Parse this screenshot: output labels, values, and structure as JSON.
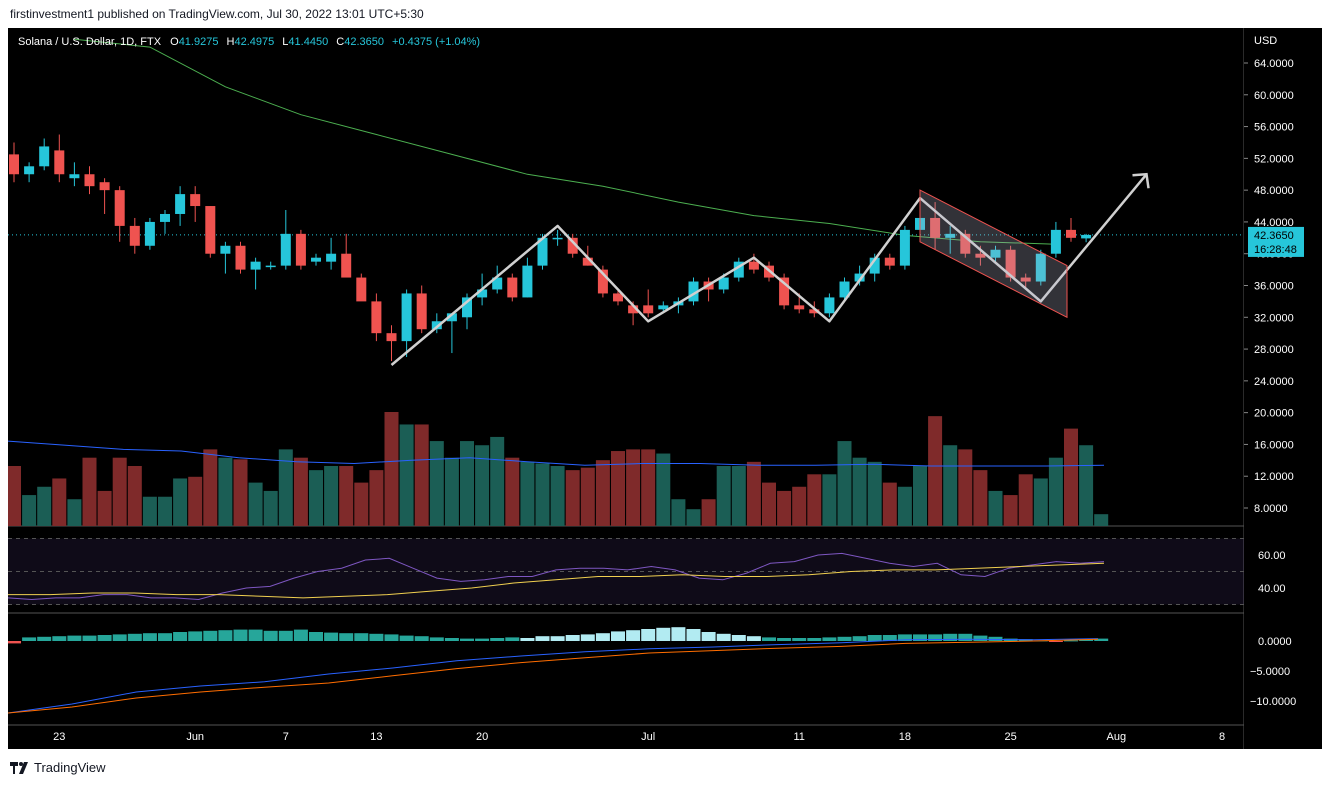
{
  "header": {
    "publish_line": "firstinvestment1 published on TradingView.com, Jul 30, 2022 13:01 UTC+5:30"
  },
  "legend": {
    "symbol": "Solana / U.S. Dollar, 1D, FTX",
    "o_label": "O",
    "o_value": "41.9275",
    "h_label": "H",
    "h_value": "42.4975",
    "l_label": "L",
    "l_value": "41.4450",
    "c_label": "C",
    "c_value": "42.3650",
    "change": "+0.4375 (+1.04%)"
  },
  "price_axis": {
    "currency": "USD",
    "ticks": [
      "64.0000",
      "60.0000",
      "56.0000",
      "52.0000",
      "48.0000",
      "44.0000",
      "40.0000",
      "36.0000",
      "32.0000",
      "28.0000",
      "24.0000",
      "20.0000",
      "16.0000",
      "12.0000",
      "8.0000"
    ],
    "last_price": "42.3650",
    "countdown": "16:28:48"
  },
  "rsi_axis": {
    "ticks": [
      "60.00",
      "40.00"
    ]
  },
  "macd_axis": {
    "ticks": [
      "0.0000",
      "−5.0000",
      "−10.0000"
    ]
  },
  "time_axis": {
    "labels": [
      "23",
      "Jun",
      "7",
      "13",
      "20",
      "Jul",
      "11",
      "18",
      "25",
      "Aug",
      "8"
    ]
  },
  "footer": {
    "brand": "TradingView"
  },
  "colors": {
    "up": "#26c6da",
    "down": "#ef5350",
    "vol_up": "#1b5e55",
    "vol_down": "#7f2a2a",
    "ma": "#4caf50",
    "vol_ma": "#2962ff",
    "rsi": "#7e57c2",
    "rsi_ma": "#f0d050",
    "macd": "#2962ff",
    "signal": "#ff6d00",
    "pattern": "#d0d0d0",
    "channel": "#ef5350"
  },
  "chart_data": {
    "type": "candlestick",
    "title": "Solana / U.S. Dollar, 1D, FTX",
    "x_range": [
      "2022-05-20",
      "2022-08-10"
    ],
    "ylim": [
      6.5,
      67
    ],
    "candles": [
      {
        "d": "2022-05-20",
        "o": 52.5,
        "h": 54.0,
        "l": 49.0,
        "c": 50.0
      },
      {
        "d": "2022-05-21",
        "o": 50.0,
        "h": 51.5,
        "l": 49.0,
        "c": 51.0
      },
      {
        "d": "2022-05-22",
        "o": 51.0,
        "h": 54.5,
        "l": 50.5,
        "c": 53.5
      },
      {
        "d": "2022-05-23",
        "o": 53.0,
        "h": 55.0,
        "l": 49.0,
        "c": 50.0
      },
      {
        "d": "2022-05-24",
        "o": 49.5,
        "h": 51.5,
        "l": 48.5,
        "c": 50.0
      },
      {
        "d": "2022-05-25",
        "o": 50.0,
        "h": 51.0,
        "l": 47.5,
        "c": 48.5
      },
      {
        "d": "2022-05-26",
        "o": 49.0,
        "h": 49.5,
        "l": 45.0,
        "c": 48.0
      },
      {
        "d": "2022-05-27",
        "o": 48.0,
        "h": 48.5,
        "l": 41.5,
        "c": 43.5
      },
      {
        "d": "2022-05-28",
        "o": 43.5,
        "h": 44.5,
        "l": 40.0,
        "c": 41.0
      },
      {
        "d": "2022-05-29",
        "o": 41.0,
        "h": 44.5,
        "l": 40.5,
        "c": 44.0
      },
      {
        "d": "2022-05-30",
        "o": 44.0,
        "h": 45.5,
        "l": 42.5,
        "c": 45.0
      },
      {
        "d": "2022-05-31",
        "o": 45.0,
        "h": 48.5,
        "l": 43.5,
        "c": 47.5
      },
      {
        "d": "2022-06-01",
        "o": 47.5,
        "h": 48.5,
        "l": 44.0,
        "c": 46.0
      },
      {
        "d": "2022-06-02",
        "o": 46.0,
        "h": 46.0,
        "l": 39.5,
        "c": 40.0
      },
      {
        "d": "2022-06-03",
        "o": 40.0,
        "h": 41.5,
        "l": 37.5,
        "c": 41.0
      },
      {
        "d": "2022-06-04",
        "o": 41.0,
        "h": 41.5,
        "l": 37.5,
        "c": 38.0
      },
      {
        "d": "2022-06-05",
        "o": 38.0,
        "h": 39.5,
        "l": 35.5,
        "c": 39.0
      },
      {
        "d": "2022-06-06",
        "o": 38.5,
        "h": 39.0,
        "l": 38.0,
        "c": 38.5
      },
      {
        "d": "2022-06-07",
        "o": 38.5,
        "h": 45.5,
        "l": 38.0,
        "c": 42.5
      },
      {
        "d": "2022-06-08",
        "o": 42.5,
        "h": 43.0,
        "l": 38.0,
        "c": 38.5
      },
      {
        "d": "2022-06-09",
        "o": 39.0,
        "h": 40.0,
        "l": 38.5,
        "c": 39.5
      },
      {
        "d": "2022-06-10",
        "o": 39.0,
        "h": 42.0,
        "l": 38.0,
        "c": 40.0
      },
      {
        "d": "2022-06-11",
        "o": 40.0,
        "h": 42.5,
        "l": 37.5,
        "c": 37.0
      },
      {
        "d": "2022-06-12",
        "o": 37.0,
        "h": 37.5,
        "l": 34.5,
        "c": 34.0
      },
      {
        "d": "2022-06-13",
        "o": 34.0,
        "h": 35.0,
        "l": 29.0,
        "c": 30.0
      },
      {
        "d": "2022-06-14",
        "o": 30.0,
        "h": 31.0,
        "l": 26.5,
        "c": 29.0
      },
      {
        "d": "2022-06-15",
        "o": 29.0,
        "h": 35.5,
        "l": 27.0,
        "c": 35.0
      },
      {
        "d": "2022-06-16",
        "o": 35.0,
        "h": 36.0,
        "l": 30.0,
        "c": 30.5
      },
      {
        "d": "2022-06-17",
        "o": 30.5,
        "h": 32.5,
        "l": 30.0,
        "c": 31.5
      },
      {
        "d": "2022-06-18",
        "o": 31.5,
        "h": 32.5,
        "l": 27.5,
        "c": 32.5
      },
      {
        "d": "2022-06-19",
        "o": 32.0,
        "h": 35.0,
        "l": 30.5,
        "c": 34.5
      },
      {
        "d": "2022-06-20",
        "o": 34.5,
        "h": 37.5,
        "l": 33.5,
        "c": 35.5
      },
      {
        "d": "2022-06-21",
        "o": 35.5,
        "h": 38.5,
        "l": 35.0,
        "c": 37.0
      },
      {
        "d": "2022-06-22",
        "o": 37.0,
        "h": 37.5,
        "l": 34.0,
        "c": 34.5
      },
      {
        "d": "2022-06-23",
        "o": 34.5,
        "h": 39.5,
        "l": 34.5,
        "c": 38.5
      },
      {
        "d": "2022-06-24",
        "o": 38.5,
        "h": 42.5,
        "l": 38.0,
        "c": 42.0
      },
      {
        "d": "2022-06-25",
        "o": 42.0,
        "h": 43.0,
        "l": 41.0,
        "c": 42.0
      },
      {
        "d": "2022-06-26",
        "o": 42.0,
        "h": 42.5,
        "l": 39.5,
        "c": 40.0
      },
      {
        "d": "2022-06-27",
        "o": 39.5,
        "h": 41.0,
        "l": 38.5,
        "c": 38.5
      },
      {
        "d": "2022-06-28",
        "o": 38.0,
        "h": 38.5,
        "l": 34.5,
        "c": 35.0
      },
      {
        "d": "2022-06-29",
        "o": 35.0,
        "h": 35.5,
        "l": 33.5,
        "c": 34.0
      },
      {
        "d": "2022-06-30",
        "o": 33.5,
        "h": 34.0,
        "l": 31.0,
        "c": 32.5
      },
      {
        "d": "2022-07-01",
        "o": 33.5,
        "h": 35.5,
        "l": 32.0,
        "c": 32.5
      },
      {
        "d": "2022-07-02",
        "o": 33.0,
        "h": 34.0,
        "l": 32.5,
        "c": 33.5
      },
      {
        "d": "2022-07-03",
        "o": 33.5,
        "h": 34.5,
        "l": 32.5,
        "c": 34.0
      },
      {
        "d": "2022-07-04",
        "o": 34.0,
        "h": 37.0,
        "l": 33.5,
        "c": 36.5
      },
      {
        "d": "2022-07-05",
        "o": 36.5,
        "h": 37.0,
        "l": 34.0,
        "c": 35.5
      },
      {
        "d": "2022-07-06",
        "o": 35.5,
        "h": 37.5,
        "l": 35.0,
        "c": 37.0
      },
      {
        "d": "2022-07-07",
        "o": 37.0,
        "h": 39.5,
        "l": 36.5,
        "c": 39.0
      },
      {
        "d": "2022-07-08",
        "o": 39.0,
        "h": 40.0,
        "l": 37.5,
        "c": 38.0
      },
      {
        "d": "2022-07-09",
        "o": 38.5,
        "h": 39.0,
        "l": 36.5,
        "c": 37.0
      },
      {
        "d": "2022-07-10",
        "o": 37.0,
        "h": 37.5,
        "l": 33.0,
        "c": 33.5
      },
      {
        "d": "2022-07-11",
        "o": 33.5,
        "h": 35.0,
        "l": 32.5,
        "c": 33.0
      },
      {
        "d": "2022-07-12",
        "o": 33.0,
        "h": 34.0,
        "l": 32.0,
        "c": 32.5
      },
      {
        "d": "2022-07-13",
        "o": 32.5,
        "h": 35.0,
        "l": 32.0,
        "c": 34.5
      },
      {
        "d": "2022-07-14",
        "o": 34.5,
        "h": 37.0,
        "l": 34.0,
        "c": 36.5
      },
      {
        "d": "2022-07-15",
        "o": 36.5,
        "h": 38.5,
        "l": 36.0,
        "c": 37.5
      },
      {
        "d": "2022-07-16",
        "o": 37.5,
        "h": 40.0,
        "l": 36.5,
        "c": 39.5
      },
      {
        "d": "2022-07-17",
        "o": 39.5,
        "h": 40.0,
        "l": 38.0,
        "c": 38.5
      },
      {
        "d": "2022-07-18",
        "o": 38.5,
        "h": 43.5,
        "l": 38.0,
        "c": 43.0
      },
      {
        "d": "2022-07-19",
        "o": 43.0,
        "h": 46.0,
        "l": 42.0,
        "c": 44.5
      },
      {
        "d": "2022-07-20",
        "o": 44.5,
        "h": 46.5,
        "l": 40.5,
        "c": 42.0
      },
      {
        "d": "2022-07-21",
        "o": 42.0,
        "h": 43.5,
        "l": 40.0,
        "c": 42.5
      },
      {
        "d": "2022-07-22",
        "o": 42.5,
        "h": 43.0,
        "l": 39.5,
        "c": 40.0
      },
      {
        "d": "2022-07-23",
        "o": 40.0,
        "h": 41.0,
        "l": 38.5,
        "c": 39.5
      },
      {
        "d": "2022-07-24",
        "o": 39.5,
        "h": 41.0,
        "l": 39.0,
        "c": 40.5
      },
      {
        "d": "2022-07-25",
        "o": 40.5,
        "h": 41.0,
        "l": 36.5,
        "c": 37.0
      },
      {
        "d": "2022-07-26",
        "o": 37.0,
        "h": 37.5,
        "l": 35.5,
        "c": 36.5
      },
      {
        "d": "2022-07-27",
        "o": 36.5,
        "h": 40.5,
        "l": 36.0,
        "c": 40.0
      },
      {
        "d": "2022-07-28",
        "o": 40.0,
        "h": 44.0,
        "l": 39.5,
        "c": 43.0
      },
      {
        "d": "2022-07-29",
        "o": 43.0,
        "h": 44.5,
        "l": 41.5,
        "c": 42.0
      },
      {
        "d": "2022-07-30",
        "o": 41.9275,
        "h": 42.4975,
        "l": 41.445,
        "c": 42.365
      }
    ],
    "sma": [
      {
        "d": "2022-05-24",
        "v": 67.0
      },
      {
        "d": "2022-05-29",
        "v": 66.0
      },
      {
        "d": "2022-06-03",
        "v": 61.0
      },
      {
        "d": "2022-06-08",
        "v": 57.5
      },
      {
        "d": "2022-06-13",
        "v": 55.0
      },
      {
        "d": "2022-06-18",
        "v": 52.5
      },
      {
        "d": "2022-06-23",
        "v": 50.0
      },
      {
        "d": "2022-06-28",
        "v": 48.5
      },
      {
        "d": "2022-07-03",
        "v": 46.5
      },
      {
        "d": "2022-07-08",
        "v": 44.8
      },
      {
        "d": "2022-07-13",
        "v": 43.8
      },
      {
        "d": "2022-07-18",
        "v": 42.3
      },
      {
        "d": "2022-07-23",
        "v": 41.5
      },
      {
        "d": "2022-07-28",
        "v": 41.2
      }
    ],
    "volume": [
      14.5,
      11.0,
      12.0,
      13.0,
      10.5,
      15.5,
      11.5,
      15.5,
      14.5,
      10.8,
      10.8,
      13.0,
      13.2,
      16.5,
      15.5,
      15.3,
      12.5,
      11.5,
      16.5,
      15.5,
      14.0,
      14.5,
      14.5,
      12.5,
      14.0,
      21.0,
      19.5,
      19.5,
      17.5,
      15.5,
      17.5,
      17.0,
      18.0,
      15.5,
      15.0,
      14.8,
      14.5,
      14.0,
      14.3,
      15.2,
      16.3,
      16.5,
      16.5,
      16.0,
      10.5,
      9.3,
      10.5,
      14.5,
      14.5,
      15.0,
      12.5,
      11.5,
      12.0,
      13.5,
      13.5,
      17.5,
      15.5,
      15.0,
      12.5,
      12.0,
      14.5,
      20.5,
      17.0,
      16.5,
      14.0,
      11.5,
      11.0,
      13.5,
      13.0,
      15.5,
      19.0,
      17.0,
      8.7
    ],
    "volume_ma": [
      17.5,
      17.0,
      16.5,
      16.3,
      15.5,
      15.0,
      14.8,
      15.2,
      15.5,
      15.0,
      14.6,
      14.8,
      14.8,
      14.6,
      14.6,
      14.7,
      14.5,
      14.5,
      14.5,
      14.6
    ],
    "rsi": [
      34,
      33,
      34,
      34,
      36,
      36,
      34,
      34,
      33,
      37,
      40,
      41,
      46,
      50,
      52,
      57,
      58,
      52,
      46,
      44,
      45,
      47,
      47,
      51,
      52,
      52,
      51,
      53,
      51,
      46,
      45,
      49,
      55,
      56,
      60,
      61,
      58,
      55,
      53,
      55,
      48,
      47,
      52,
      54,
      56,
      55,
      56
    ],
    "rsi_ma": [
      36,
      36,
      37,
      37,
      36,
      36,
      35,
      34,
      35,
      36,
      38,
      40,
      43,
      45,
      47,
      47,
      48,
      47,
      47,
      48,
      50,
      51,
      51,
      52,
      53,
      54,
      55
    ],
    "macd": [
      -12.0,
      -10.5,
      -8.5,
      -7.5,
      -6.8,
      -5.5,
      -4.5,
      -3.3,
      -2.5,
      -1.8,
      -1.3,
      -1.0,
      -0.6,
      -0.3,
      0.2,
      0.3,
      0.2,
      0.4
    ],
    "signal": [
      -12.0,
      -11.0,
      -9.5,
      -8.5,
      -7.7,
      -7.0,
      -5.8,
      -4.6,
      -3.6,
      -2.8,
      -2.0,
      -1.6,
      -1.2,
      -0.9,
      -0.4,
      -0.2,
      0.0,
      0.3
    ],
    "macd_hist": [
      -0.4,
      0.6,
      0.7,
      0.8,
      0.9,
      0.9,
      1.0,
      1.1,
      1.2,
      1.3,
      1.3,
      1.5,
      1.6,
      1.7,
      1.8,
      1.9,
      1.9,
      1.7,
      1.7,
      1.9,
      1.5,
      1.4,
      1.3,
      1.3,
      1.2,
      1.1,
      0.9,
      0.8,
      0.6,
      0.5,
      0.4,
      0.4,
      0.5,
      0.6,
      0.5,
      0.8,
      0.8,
      1.0,
      1.1,
      1.3,
      1.6,
      1.8,
      2.0,
      2.2,
      2.3,
      2.0,
      1.5,
      1.2,
      1.0,
      0.8,
      0.6,
      0.5,
      0.5,
      0.5,
      0.6,
      0.7,
      0.8,
      1.0,
      1.0,
      1.1,
      1.1,
      1.1,
      1.2,
      1.2,
      0.9,
      0.7,
      0.4,
      0.3,
      0.1,
      -0.1,
      0.1,
      0.3,
      0.4
    ]
  }
}
